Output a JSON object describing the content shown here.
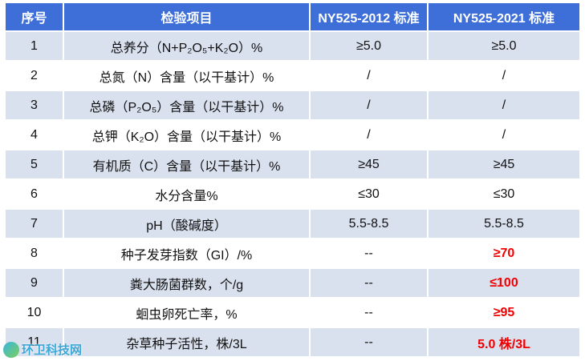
{
  "table": {
    "header": [
      "序号",
      "检验项目",
      "NY525-2012 标准",
      "NY525-2021 标准"
    ],
    "rows": [
      [
        "1",
        "总养分（N+P₂O₅+K₂O）%",
        "≥5.0",
        "≥5.0"
      ],
      [
        "2",
        "总氮（N）含量（以干基计）%",
        "/",
        "/"
      ],
      [
        "3",
        "总磷（P₂O₅）含量（以干基计）%",
        "/",
        "/"
      ],
      [
        "4",
        "总钾（K₂O）含量（以干基计）%",
        "/",
        "/"
      ],
      [
        "5",
        "有机质（C）含量（以干基计）%",
        "≥45",
        "≥45"
      ],
      [
        "6",
        "水分含量%",
        "≤30",
        "≤30"
      ],
      [
        "7",
        "pH（酸碱度）",
        "5.5-8.5",
        "5.5-8.5"
      ],
      [
        "8",
        "种子发芽指数（GI）/%",
        "--",
        "≥70"
      ],
      [
        "9",
        "粪大肠菌群数，个/g",
        "--",
        "≤100"
      ],
      [
        "10",
        "蛔虫卵死亡率，%",
        "--",
        "≥95"
      ],
      [
        "11",
        "杂草种子活性，株/3L",
        "--",
        "5.0 株/3L"
      ]
    ]
  },
  "watermark": "环卫科技网"
}
